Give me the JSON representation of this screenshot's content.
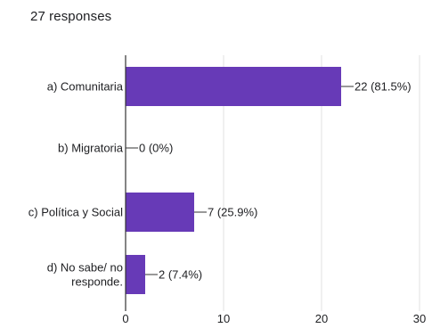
{
  "responses_label": "27 responses",
  "chart_data": {
    "type": "bar",
    "orientation": "horizontal",
    "categories": [
      [
        "a) Comunitaria"
      ],
      [
        "b) Migratoria"
      ],
      [
        "c) Política y Social"
      ],
      [
        "d) No sabe/ no",
        "responde."
      ]
    ],
    "values": [
      22,
      0,
      7,
      2
    ],
    "value_labels": [
      "22 (81.5%)",
      "0 (0%)",
      "7 (25.9%)",
      "2 (7.4%)"
    ],
    "xlim": [
      0,
      30
    ],
    "xticks": [
      0,
      10,
      20,
      30
    ],
    "grid": true,
    "bar_color": "#673ab7",
    "grid_color": "#e0e0e0",
    "axis_color": "#333333",
    "text_color": "#202124"
  }
}
